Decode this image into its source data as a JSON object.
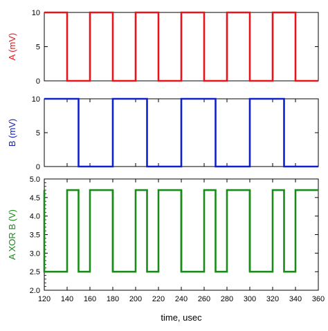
{
  "chart_data": {
    "type": "line",
    "xlabel": "time, usec",
    "xlim": [
      120,
      360
    ],
    "x_ticks": [
      120,
      140,
      160,
      180,
      200,
      220,
      240,
      260,
      280,
      300,
      320,
      340,
      360
    ],
    "panels": [
      {
        "id": "panel-a",
        "ylabel": "A (mV)",
        "color": "#e8141a",
        "ylim": [
          0,
          10
        ],
        "y_ticks": [
          0,
          5,
          10
        ],
        "series": [
          {
            "name": "A (mV)",
            "x": [
              120,
              140,
              140,
              160,
              160,
              180,
              180,
              200,
              200,
              220,
              220,
              240,
              240,
              260,
              260,
              280,
              280,
              300,
              300,
              320,
              320,
              340,
              340,
              360
            ],
            "y": [
              10,
              10,
              0,
              0,
              10,
              10,
              0,
              0,
              10,
              10,
              0,
              0,
              10,
              10,
              0,
              0,
              10,
              10,
              0,
              0,
              10,
              10,
              0,
              0
            ]
          }
        ]
      },
      {
        "id": "panel-b",
        "ylabel": "B (mV)",
        "color": "#1020c8",
        "ylim": [
          0,
          10
        ],
        "y_ticks": [
          0,
          5,
          10
        ],
        "series": [
          {
            "name": "B (mV)",
            "x": [
              120,
              150,
              150,
              180,
              180,
              210,
              210,
              240,
              240,
              270,
              270,
              300,
              300,
              330,
              330,
              360
            ],
            "y": [
              10,
              10,
              0,
              0,
              10,
              10,
              0,
              0,
              10,
              10,
              0,
              0,
              10,
              10,
              0,
              0
            ]
          }
        ]
      },
      {
        "id": "panel-xor",
        "ylabel": "A XOR B (V)",
        "color": "#1a8a1a",
        "ylim": [
          2.0,
          5.0
        ],
        "y_ticks": [
          2.0,
          2.5,
          3.0,
          3.5,
          4.0,
          4.5,
          5.0
        ],
        "series": [
          {
            "name": "A XOR B (V)",
            "x": [
              120,
              120,
              140,
              140,
              150,
              150,
              160,
              160,
              180,
              180,
              200,
              200,
              210,
              210,
              220,
              220,
              240,
              240,
              260,
              260,
              270,
              270,
              280,
              280,
              300,
              300,
              320,
              320,
              330,
              330,
              340,
              340,
              360
            ],
            "y": [
              4.7,
              2.5,
              2.5,
              4.7,
              4.7,
              2.5,
              2.5,
              4.7,
              4.7,
              2.5,
              2.5,
              4.7,
              4.7,
              2.5,
              2.5,
              4.7,
              4.7,
              2.5,
              2.5,
              4.7,
              4.7,
              2.5,
              2.5,
              4.7,
              4.7,
              2.5,
              2.5,
              4.7,
              4.7,
              2.5,
              2.5,
              4.7,
              4.7
            ]
          }
        ],
        "glitches": [
          {
            "x": 180,
            "y": [
              2.5,
              4.7
            ]
          },
          {
            "x": 240,
            "y": [
              2.5,
              4.7
            ]
          },
          {
            "x": 300,
            "y": [
              2.5,
              4.7
            ]
          }
        ]
      }
    ],
    "grid": false,
    "legend": "none"
  }
}
